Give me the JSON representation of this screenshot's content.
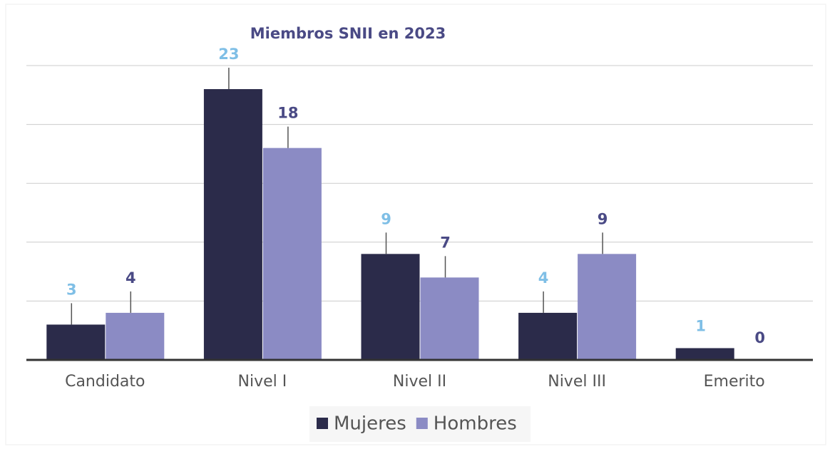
{
  "chart_data": {
    "type": "bar",
    "title": "Miembros SNII en 2023",
    "categories": [
      "Candidato",
      "Nivel I",
      "Nivel II",
      "Nivel III",
      "Emerito"
    ],
    "series": [
      {
        "name": "Mujeres",
        "color": "#2b2b4a",
        "label_color": "#7fbfe6",
        "values": [
          3,
          23,
          9,
          4,
          1
        ]
      },
      {
        "name": "Hombres",
        "color": "#8b8bc4",
        "label_color": "#4a4a85",
        "values": [
          4,
          18,
          7,
          9,
          0
        ]
      }
    ],
    "ylim": [
      0,
      25
    ],
    "yticks": [
      0,
      5,
      10,
      15,
      20,
      25
    ],
    "grid": true,
    "legend": "bottom"
  }
}
